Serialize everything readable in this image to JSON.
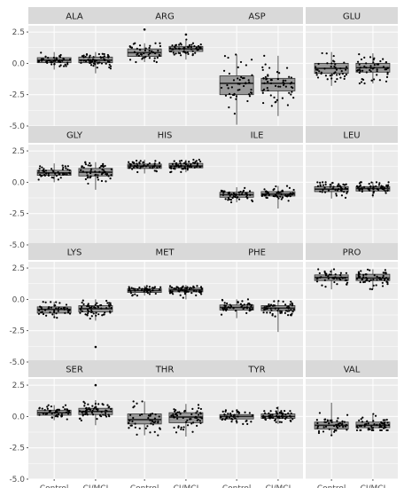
{
  "chart_data": {
    "type": "boxplot",
    "layout": {
      "rows": 4,
      "cols": 4
    },
    "facet_by": "amino_acid",
    "categories": [
      "Control",
      "CI/MCI"
    ],
    "y_ticks": [
      2.5,
      0.0,
      -2.5,
      -5.0
    ],
    "y_tick_labels": [
      "2.5",
      "0.0",
      "-2.5",
      "-5.0"
    ],
    "ylim": [
      -5.0,
      3.0
    ],
    "grid": true,
    "jitter_points": true,
    "colors": {
      "panel_bg": "#ebebeb",
      "strip_bg": "#d9d9d9",
      "grid": "#ffffff",
      "box_fill": "#999999",
      "point": "#000000"
    },
    "facets": [
      {
        "name": "ALA",
        "boxes": [
          {
            "group": "Control",
            "whislo": -0.5,
            "q1": 0.05,
            "med": 0.25,
            "q3": 0.45,
            "whishi": 0.9,
            "n": 45,
            "outliers": []
          },
          {
            "group": "CI/MCI",
            "whislo": -0.8,
            "q1": 0.05,
            "med": 0.25,
            "q3": 0.5,
            "whishi": 0.9,
            "n": 55,
            "outliers": []
          }
        ]
      },
      {
        "name": "ARG",
        "boxes": [
          {
            "group": "Control",
            "whislo": 0.1,
            "q1": 0.55,
            "med": 0.85,
            "q3": 1.15,
            "whishi": 1.6,
            "n": 45,
            "outliers": [
              2.7
            ]
          },
          {
            "group": "CI/MCI",
            "whislo": 0.3,
            "q1": 0.95,
            "med": 1.15,
            "q3": 1.35,
            "whishi": 1.9,
            "n": 55,
            "outliers": [
              2.3
            ]
          }
        ]
      },
      {
        "name": "ASP",
        "boxes": [
          {
            "group": "Control",
            "whislo": -4.9,
            "q1": -2.5,
            "med": -1.6,
            "q3": -1.0,
            "whishi": 0.7,
            "n": 45,
            "outliers": []
          },
          {
            "group": "CI/MCI",
            "whislo": -4.2,
            "q1": -2.2,
            "med": -1.6,
            "q3": -1.2,
            "whishi": 0.6,
            "n": 55,
            "outliers": []
          }
        ]
      },
      {
        "name": "GLU",
        "boxes": [
          {
            "group": "Control",
            "whislo": -1.8,
            "q1": -0.8,
            "med": -0.4,
            "q3": 0.0,
            "whishi": 0.9,
            "n": 45,
            "outliers": []
          },
          {
            "group": "CI/MCI",
            "whislo": -1.6,
            "q1": -0.7,
            "med": -0.35,
            "q3": 0.0,
            "whishi": 0.8,
            "n": 55,
            "outliers": []
          }
        ]
      },
      {
        "name": "GLY",
        "boxes": [
          {
            "group": "Control",
            "whislo": 0.0,
            "q1": 0.55,
            "med": 0.75,
            "q3": 0.95,
            "whishi": 1.5,
            "n": 45,
            "outliers": []
          },
          {
            "group": "CI/MCI",
            "whislo": -0.6,
            "q1": 0.5,
            "med": 0.8,
            "q3": 1.1,
            "whishi": 1.6,
            "n": 55,
            "outliers": []
          }
        ]
      },
      {
        "name": "HIS",
        "boxes": [
          {
            "group": "Control",
            "whislo": 0.7,
            "q1": 1.1,
            "med": 1.3,
            "q3": 1.45,
            "whishi": 1.8,
            "n": 45,
            "outliers": []
          },
          {
            "group": "CI/MCI",
            "whislo": 0.8,
            "q1": 1.15,
            "med": 1.3,
            "q3": 1.5,
            "whishi": 1.8,
            "n": 55,
            "outliers": []
          }
        ]
      },
      {
        "name": "ILE",
        "boxes": [
          {
            "group": "Control",
            "whislo": -1.6,
            "q1": -1.2,
            "med": -1.0,
            "q3": -0.8,
            "whishi": -0.4,
            "n": 45,
            "outliers": []
          },
          {
            "group": "CI/MCI",
            "whislo": -2.1,
            "q1": -1.1,
            "med": -0.95,
            "q3": -0.75,
            "whishi": -0.3,
            "n": 55,
            "outliers": []
          }
        ]
      },
      {
        "name": "LEU",
        "boxes": [
          {
            "group": "Control",
            "whislo": -1.3,
            "q1": -0.75,
            "med": -0.55,
            "q3": -0.35,
            "whishi": 0.0,
            "n": 45,
            "outliers": []
          },
          {
            "group": "CI/MCI",
            "whislo": -1.2,
            "q1": -0.7,
            "med": -0.5,
            "q3": -0.35,
            "whishi": 0.0,
            "n": 55,
            "outliers": []
          }
        ]
      },
      {
        "name": "LYS",
        "boxes": [
          {
            "group": "Control",
            "whislo": -1.5,
            "q1": -1.1,
            "med": -0.8,
            "q3": -0.6,
            "whishi": -0.2,
            "n": 45,
            "outliers": []
          },
          {
            "group": "CI/MCI",
            "whislo": -1.7,
            "q1": -1.0,
            "med": -0.75,
            "q3": -0.5,
            "whishi": 0.0,
            "n": 55,
            "outliers": [
              -3.8
            ]
          }
        ]
      },
      {
        "name": "MET",
        "boxes": [
          {
            "group": "Control",
            "whislo": 0.3,
            "q1": 0.55,
            "med": 0.7,
            "q3": 0.85,
            "whishi": 1.1,
            "n": 45,
            "outliers": []
          },
          {
            "group": "CI/MCI",
            "whislo": 0.0,
            "q1": 0.6,
            "med": 0.75,
            "q3": 0.9,
            "whishi": 1.15,
            "n": 55,
            "outliers": []
          }
        ]
      },
      {
        "name": "PHE",
        "boxes": [
          {
            "group": "Control",
            "whislo": -1.5,
            "q1": -0.85,
            "med": -0.65,
            "q3": -0.45,
            "whishi": 0.0,
            "n": 45,
            "outliers": []
          },
          {
            "group": "CI/MCI",
            "whislo": -2.6,
            "q1": -0.9,
            "med": -0.7,
            "q3": -0.5,
            "whishi": -0.1,
            "n": 55,
            "outliers": []
          }
        ]
      },
      {
        "name": "PRO",
        "boxes": [
          {
            "group": "Control",
            "whislo": 0.8,
            "q1": 1.5,
            "med": 1.75,
            "q3": 1.95,
            "whishi": 2.4,
            "n": 45,
            "outliers": []
          },
          {
            "group": "CI/MCI",
            "whislo": 0.8,
            "q1": 1.5,
            "med": 1.7,
            "q3": 2.0,
            "whishi": 2.4,
            "n": 55,
            "outliers": []
          }
        ]
      },
      {
        "name": "SER",
        "boxes": [
          {
            "group": "Control",
            "whislo": -0.3,
            "q1": 0.1,
            "med": 0.3,
            "q3": 0.5,
            "whishi": 0.9,
            "n": 45,
            "outliers": []
          },
          {
            "group": "CI/MCI",
            "whislo": -0.7,
            "q1": 0.15,
            "med": 0.4,
            "q3": 0.65,
            "whishi": 1.3,
            "n": 55,
            "outliers": [
              2.5
            ]
          }
        ]
      },
      {
        "name": "THR",
        "boxes": [
          {
            "group": "Control",
            "whislo": -1.5,
            "q1": -0.6,
            "med": -0.25,
            "q3": 0.2,
            "whishi": 1.2,
            "n": 45,
            "outliers": []
          },
          {
            "group": "CI/MCI",
            "whislo": -1.6,
            "q1": -0.5,
            "med": -0.05,
            "q3": 0.3,
            "whishi": 1.0,
            "n": 55,
            "outliers": []
          }
        ]
      },
      {
        "name": "TYR",
        "boxes": [
          {
            "group": "Control",
            "whislo": -0.6,
            "q1": -0.2,
            "med": 0.0,
            "q3": 0.15,
            "whishi": 0.5,
            "n": 45,
            "outliers": []
          },
          {
            "group": "CI/MCI",
            "whislo": -0.6,
            "q1": -0.15,
            "med": 0.0,
            "q3": 0.2,
            "whishi": 0.8,
            "n": 55,
            "outliers": []
          }
        ]
      },
      {
        "name": "VAL",
        "boxes": [
          {
            "group": "Control",
            "whislo": -1.5,
            "q1": -1.0,
            "med": -0.7,
            "q3": -0.45,
            "whishi": 1.1,
            "n": 45,
            "outliers": []
          },
          {
            "group": "CI/MCI",
            "whislo": -1.1,
            "q1": -0.9,
            "med": -0.7,
            "q3": -0.45,
            "whishi": 0.2,
            "n": 55,
            "outliers": []
          }
        ]
      }
    ]
  }
}
